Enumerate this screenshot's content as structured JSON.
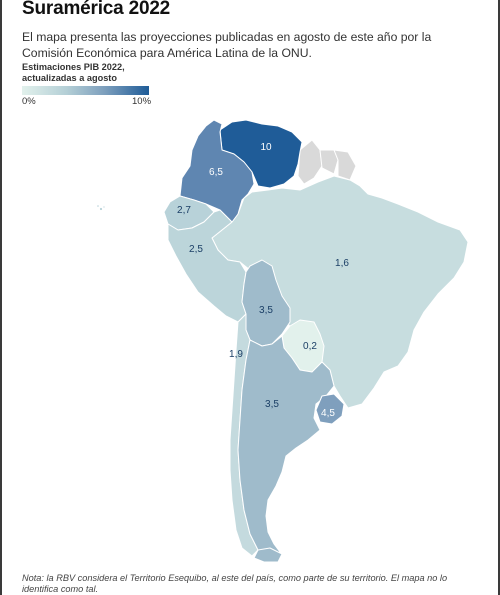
{
  "title": "Suramérica 2022",
  "subtitle": "El mapa presenta las proyecciones publicadas en agosto de este año por la Comisión Económica para América Latina de la ONU.",
  "legend": {
    "title": "Estimaciones PIB 2022, actualizadas a agosto",
    "min_label": "0%",
    "max_label": "10%",
    "color_low": "#e2f1ec",
    "color_high": "#1f5c98"
  },
  "countries": [
    {
      "name": "Venezuela",
      "value": "10",
      "color": "#1f5c98"
    },
    {
      "name": "Colombia",
      "value": "6,5",
      "color": "#5f86b1"
    },
    {
      "name": "Ecuador",
      "value": "2,7",
      "color": "#b8d2d9"
    },
    {
      "name": "Perú",
      "value": "2,5",
      "color": "#bcd5da"
    },
    {
      "name": "Brasil",
      "value": "1,6",
      "color": "#c7dddf"
    },
    {
      "name": "Bolivia",
      "value": "3,5",
      "color": "#9fbbcb"
    },
    {
      "name": "Paraguay",
      "value": "0,2",
      "color": "#e2f1ec"
    },
    {
      "name": "Chile",
      "value": "1,9",
      "color": "#c4dade"
    },
    {
      "name": "Argentina",
      "value": "3,5",
      "color": "#9fbbcb"
    },
    {
      "name": "Uruguay",
      "value": "4,5",
      "color": "#7f9fbd"
    },
    {
      "name": "Guyana",
      "value": "",
      "color": "#d9d9d9"
    },
    {
      "name": "Surinam",
      "value": "",
      "color": "#d9d9d9"
    },
    {
      "name": "Guayana Francesa",
      "value": "",
      "color": "#d9d9d9"
    }
  ],
  "note": "Nota: la RBV considera el Territorio Esequibo, al este del país, como parte de su territorio. El mapa no lo identifica como tal."
}
